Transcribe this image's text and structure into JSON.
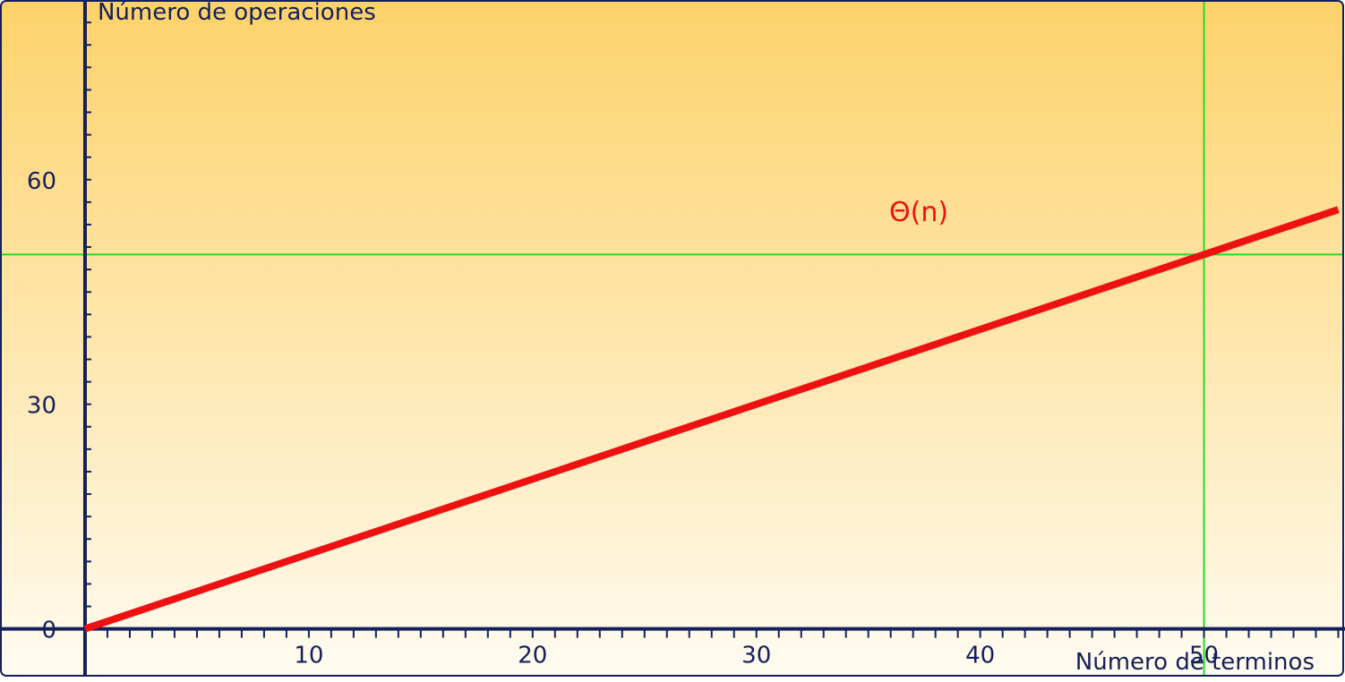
{
  "chart_data": {
    "type": "line",
    "title": "",
    "xlabel": "Número de terminos",
    "ylabel": "Número de operaciones",
    "xlim": [
      -3.8,
      56.3
    ],
    "ylim": [
      -6.5,
      84
    ],
    "x_ticks": [
      10,
      20,
      30,
      40,
      50
    ],
    "y_ticks": [
      0,
      30,
      60
    ],
    "x_minor_step": 1,
    "y_minor_step": 3,
    "series": [
      {
        "name": "Θ(n)",
        "color": "#ee1111",
        "points": [
          [
            0,
            0
          ],
          [
            56,
            56
          ]
        ]
      }
    ],
    "reference_lines": [
      {
        "axis": "x",
        "value": 50,
        "color": "#22dd22"
      },
      {
        "axis": "y",
        "value": 50,
        "color": "#22dd22"
      }
    ],
    "grid": false,
    "background_gradient": [
      "#fdd26a",
      "#fefbf0"
    ],
    "axis_color": "#14205a",
    "frame_color": "#14205a"
  }
}
